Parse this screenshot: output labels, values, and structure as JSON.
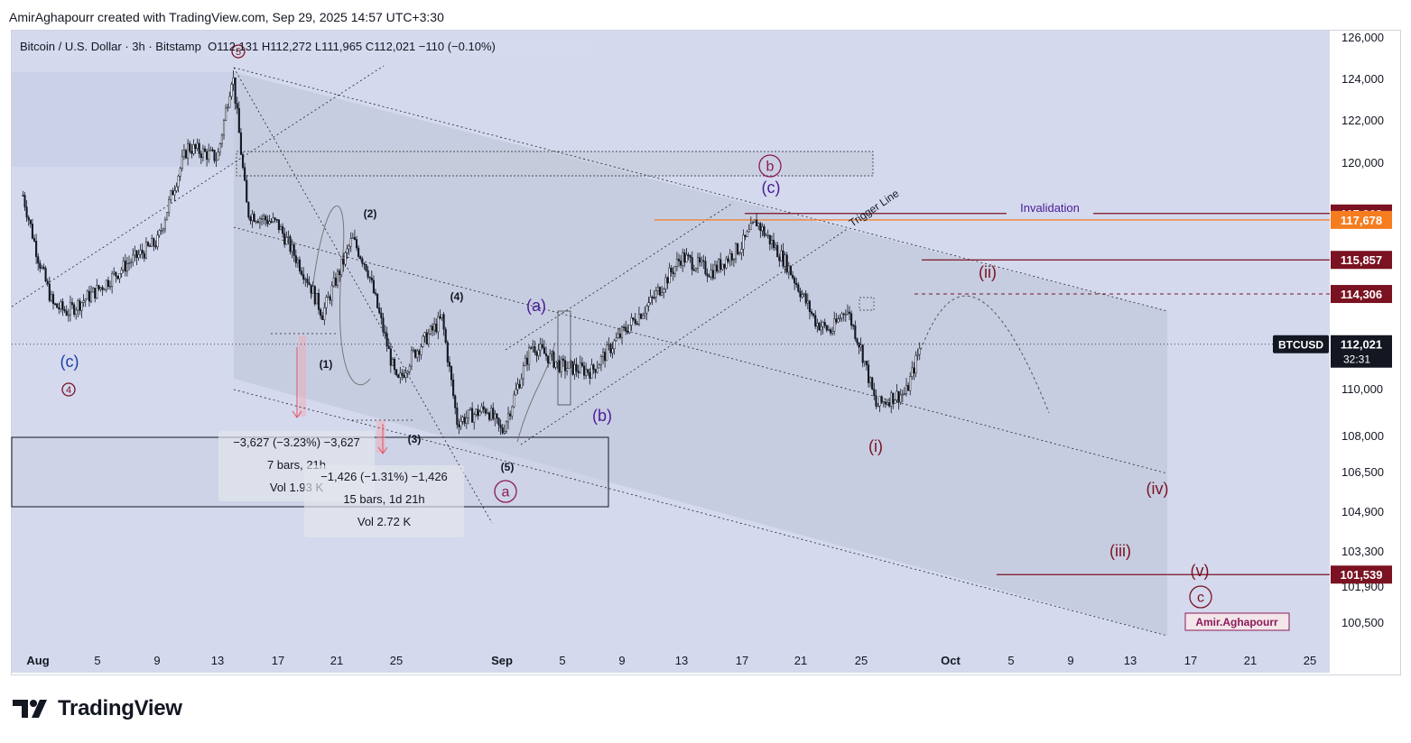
{
  "credit": "AmirAghapourr created with TradingView.com, Sep 29, 2025 14:57 UTC+3:30",
  "legend": {
    "symbol": "Bitcoin / U.S. Dollar · 3h · Bitstamp",
    "ohlc": "O112,131  H112,272  L111,965  C112,021  −110 (−0.10%)"
  },
  "brand": "TradingView",
  "colors": {
    "plot_bg": "#d4d9ee",
    "candle": "#131722",
    "dark_red": "#7a1221",
    "orange": "#f57c1f",
    "purple": "#4a1c96",
    "blue": "#1e3fa8"
  },
  "chart_data": {
    "type": "candlestick",
    "symbol": "BTCUSD",
    "interval": "3h",
    "y_axis_ticks": [
      "126,000",
      "124,000",
      "122,000",
      "120,000",
      "110,000",
      "108,000",
      "106,500",
      "104,900",
      "103,300",
      "101,900",
      "100,500"
    ],
    "x_axis_ticks": [
      "Aug",
      "5",
      "9",
      "13",
      "17",
      "21",
      "25",
      "Sep",
      "5",
      "9",
      "13",
      "17",
      "21",
      "25",
      "Oct",
      "5",
      "9",
      "13",
      "17",
      "21",
      "25"
    ],
    "ylim": [
      99900,
      126500
    ],
    "price_path": [
      {
        "date": "2025-07-31",
        "close": 118800
      },
      {
        "date": "2025-08-01",
        "close": 116000
      },
      {
        "date": "2025-08-02",
        "close": 113800
      },
      {
        "date": "2025-08-03",
        "close": 113500
      },
      {
        "date": "2025-08-05",
        "close": 114500
      },
      {
        "date": "2025-08-07",
        "close": 115700
      },
      {
        "date": "2025-08-09",
        "close": 116700
      },
      {
        "date": "2025-08-10",
        "close": 119000
      },
      {
        "date": "2025-08-11",
        "close": 121000
      },
      {
        "date": "2025-08-13",
        "close": 120500
      },
      {
        "date": "2025-08-14",
        "close": 124400
      },
      {
        "date": "2025-08-15",
        "close": 118000
      },
      {
        "date": "2025-08-17",
        "close": 117500
      },
      {
        "date": "2025-08-19",
        "close": 115000
      },
      {
        "date": "2025-08-20",
        "close": 113400
      },
      {
        "date": "2025-08-22",
        "close": 116800
      },
      {
        "date": "2025-08-23",
        "close": 115500
      },
      {
        "date": "2025-08-25",
        "close": 110200
      },
      {
        "date": "2025-08-26",
        "close": 111500
      },
      {
        "date": "2025-08-28",
        "close": 113200
      },
      {
        "date": "2025-08-29",
        "close": 108500
      },
      {
        "date": "2025-08-31",
        "close": 109100
      },
      {
        "date": "2025-09-01",
        "close": 108000
      },
      {
        "date": "2025-09-03",
        "close": 112000
      },
      {
        "date": "2025-09-05",
        "close": 111000
      },
      {
        "date": "2025-09-07",
        "close": 110800
      },
      {
        "date": "2025-09-09",
        "close": 112500
      },
      {
        "date": "2025-09-11",
        "close": 114000
      },
      {
        "date": "2025-09-13",
        "close": 116000
      },
      {
        "date": "2025-09-15",
        "close": 115300
      },
      {
        "date": "2025-09-17",
        "close": 116500
      },
      {
        "date": "2025-09-18",
        "close": 117600
      },
      {
        "date": "2025-09-20",
        "close": 115700
      },
      {
        "date": "2025-09-22",
        "close": 113000
      },
      {
        "date": "2025-09-23",
        "close": 112600
      },
      {
        "date": "2025-09-24",
        "close": 113700
      },
      {
        "date": "2025-09-25",
        "close": 111800
      },
      {
        "date": "2025-09-26",
        "close": 109200
      },
      {
        "date": "2025-09-27",
        "close": 109600
      },
      {
        "date": "2025-09-28",
        "close": 109800
      },
      {
        "date": "2025-09-29",
        "close": 112021
      }
    ],
    "price_labels": [
      {
        "text": "117,968",
        "price": 117968,
        "color": "#7a1221"
      },
      {
        "text": "117,678",
        "price": 117678,
        "color": "#f57c1f"
      },
      {
        "text": "115,857",
        "price": 115857,
        "color": "#7a1221"
      },
      {
        "text": "114,306",
        "price": 114306,
        "color": "#7a1221"
      },
      {
        "text": "101,539",
        "price": 101539,
        "color": "#7a1221"
      }
    ],
    "current_price": {
      "symbol": "BTCUSD",
      "price": "112,021",
      "countdown": "32:31"
    },
    "annotations": {
      "invalidation": "Invalidation",
      "trigger_line": "Trigger Line",
      "wave_labels": [
        "(c)",
        "(2)",
        "(1)",
        "(3)",
        "(4)",
        "(5)",
        "(a)",
        "(b)",
        "(c)",
        "(i)",
        "(ii)",
        "(iii)",
        "(iv)",
        "(v)"
      ],
      "circled_labels": [
        "5",
        "4",
        "a",
        "b",
        "c"
      ],
      "author": "Amir.Aghapourr"
    },
    "measurements": [
      {
        "line1": "−3,627 (−3.23%) −3,627",
        "line2": "7 bars, 21h",
        "line3": "Vol 1.93 K"
      },
      {
        "line1": "−1,426 (−1.31%) −1,426",
        "line2": "15 bars, 1d 21h",
        "line3": "Vol 2.72 K"
      }
    ]
  }
}
